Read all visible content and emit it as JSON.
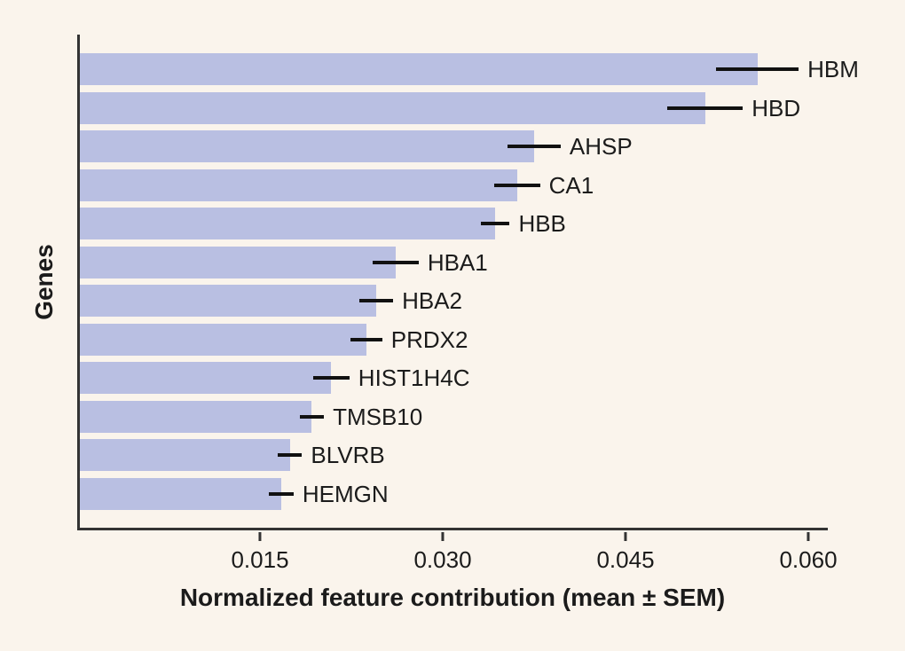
{
  "figure": {
    "background_color": "#faf4ec",
    "bar_color": "#b9bfe2",
    "axis_color": "#333333",
    "errorbar_color": "#111111",
    "text_color": "#1b1b1b"
  },
  "chart_data": {
    "type": "bar",
    "orientation": "horizontal",
    "title": "",
    "xlabel": "Normalized feature contribution (mean ± SEM)",
    "ylabel": "Genes",
    "xlim": [
      0,
      0.0616
    ],
    "xticks": [
      0.015,
      0.03,
      0.045,
      0.06
    ],
    "xtick_labels": [
      "0.015",
      "0.030",
      "0.045",
      "0.060"
    ],
    "grid": false,
    "legend": false,
    "error_bars": true,
    "categories": [
      "HBM",
      "HBD",
      "AHSP",
      "CA1",
      "HBB",
      "HBA1",
      "HBA2",
      "PRDX2",
      "HIST1H4C",
      "TMSB10",
      "BLVRB",
      "HEMGN"
    ],
    "values": [
      0.0558,
      0.0515,
      0.0374,
      0.036,
      0.0342,
      0.026,
      0.0244,
      0.0236,
      0.0207,
      0.0191,
      0.0173,
      0.0166
    ],
    "sem": [
      0.0034,
      0.0031,
      0.0022,
      0.0019,
      0.0012,
      0.0019,
      0.0014,
      0.0013,
      0.0015,
      0.001,
      0.001,
      0.001
    ]
  }
}
